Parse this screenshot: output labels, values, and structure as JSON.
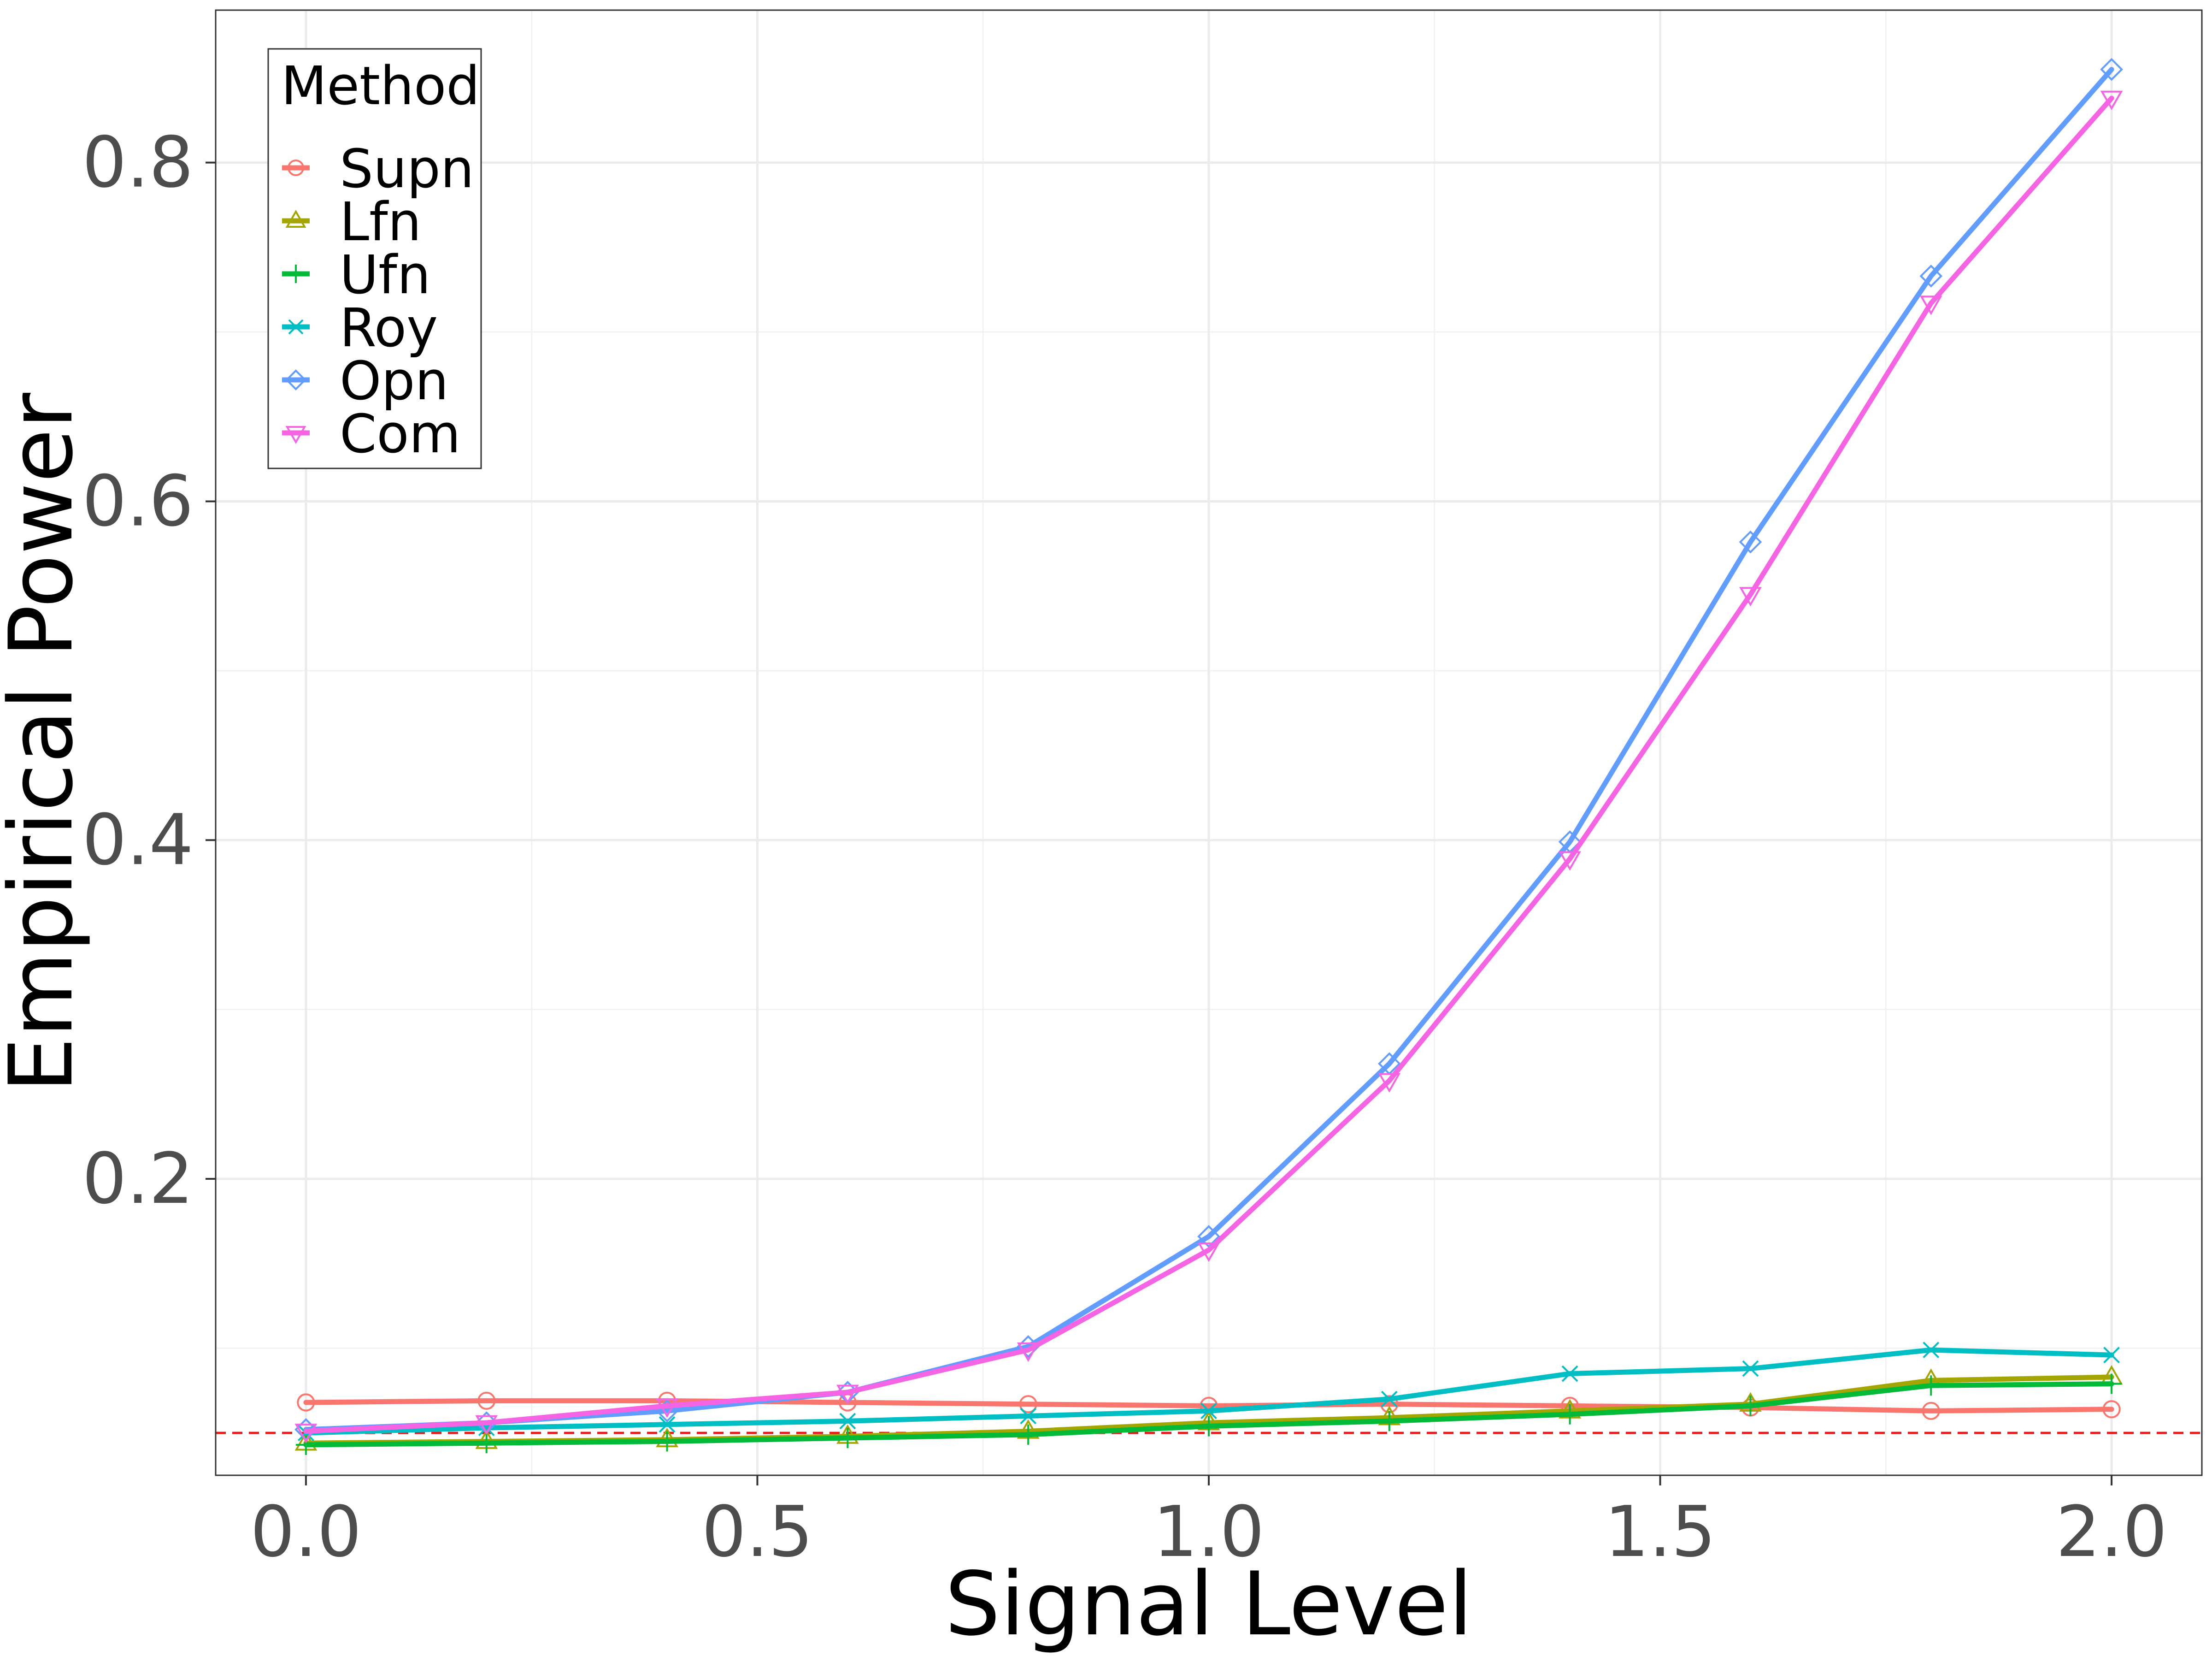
{
  "chart_data": {
    "type": "line",
    "title": "",
    "xlabel": "Signal Level",
    "ylabel": "Empirical Power",
    "xlim": [
      -0.1,
      2.1
    ],
    "ylim": [
      0.025,
      0.89
    ],
    "xticks": [
      0.0,
      0.5,
      1.0,
      1.5,
      2.0
    ],
    "xtick_labels": [
      "0.0",
      "0.5",
      "1.0",
      "1.5",
      "2.0"
    ],
    "yticks": [
      0.2,
      0.4,
      0.6,
      0.8
    ],
    "ytick_labels": [
      "0.2",
      "0.4",
      "0.6",
      "0.8"
    ],
    "grid": true,
    "reference_line": {
      "y": 0.05,
      "color": "#e41a1c",
      "style": "dashed"
    },
    "x": [
      0.0,
      0.2,
      0.4,
      0.6,
      0.8,
      1.0,
      1.2,
      1.4,
      1.6,
      1.8,
      2.0
    ],
    "legend": {
      "title": "Method",
      "position": "top-left"
    },
    "series": [
      {
        "name": "Supn",
        "color": "#F8766D",
        "marker": "circle",
        "values": [
          0.068,
          0.069,
          0.069,
          0.068,
          0.067,
          0.066,
          0.067,
          0.066,
          0.065,
          0.063,
          0.064
        ]
      },
      {
        "name": "Lfn",
        "color": "#A3A500",
        "marker": "triangle-up",
        "values": [
          0.044,
          0.045,
          0.046,
          0.048,
          0.051,
          0.056,
          0.059,
          0.063,
          0.067,
          0.081,
          0.083
        ]
      },
      {
        "name": "Ufn",
        "color": "#00BA38",
        "marker": "plus",
        "values": [
          0.043,
          0.044,
          0.045,
          0.047,
          0.049,
          0.054,
          0.057,
          0.061,
          0.066,
          0.078,
          0.079
        ]
      },
      {
        "name": "Roy",
        "color": "#00BFC4",
        "marker": "x",
        "values": [
          0.05,
          0.053,
          0.055,
          0.057,
          0.06,
          0.063,
          0.07,
          0.085,
          0.088,
          0.099,
          0.096
        ]
      },
      {
        "name": "Opn",
        "color": "#619CFF",
        "marker": "diamond",
        "values": [
          0.052,
          0.056,
          0.063,
          0.074,
          0.101,
          0.166,
          0.268,
          0.399,
          0.576,
          0.733,
          0.855
        ]
      },
      {
        "name": "Com",
        "color": "#F564E3",
        "marker": "triangle-down",
        "values": [
          0.051,
          0.056,
          0.066,
          0.074,
          0.099,
          0.158,
          0.258,
          0.389,
          0.545,
          0.717,
          0.838
        ]
      }
    ]
  }
}
